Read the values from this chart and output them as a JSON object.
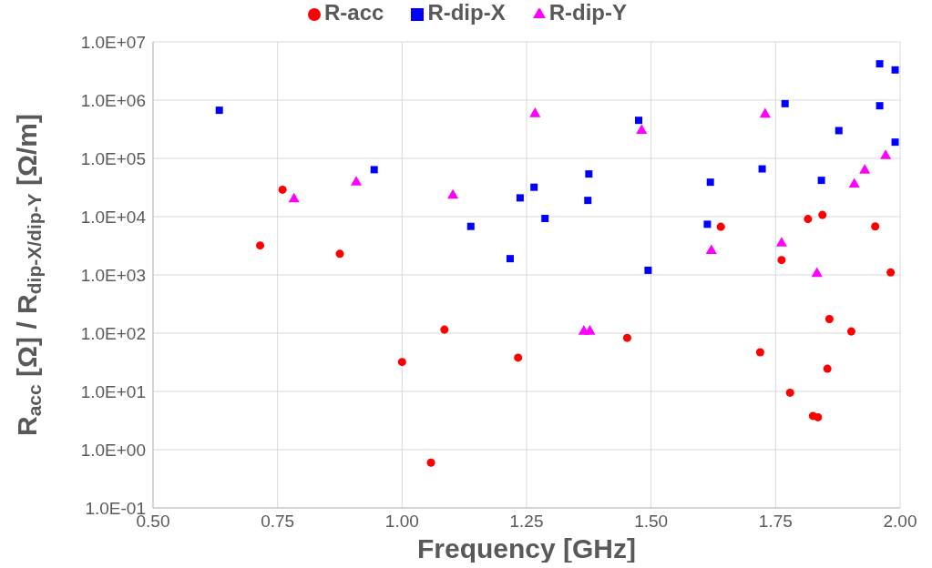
{
  "chart_data": {
    "type": "scatter",
    "xlabel": "Frequency [GHz]",
    "ylabel": "R$_{acc}$ [Ω] / R$_{dip-X/dip-Y}$ [Ω/m]",
    "xlim": [
      0.5,
      2.0
    ],
    "xticks": [
      {
        "value": 0.5,
        "label": "0.50"
      },
      {
        "value": 0.75,
        "label": "0.75"
      },
      {
        "value": 1.0,
        "label": "1.00"
      },
      {
        "value": 1.25,
        "label": "1.25"
      },
      {
        "value": 1.5,
        "label": "1.50"
      },
      {
        "value": 1.75,
        "label": "1.75"
      },
      {
        "value": 2.0,
        "label": "2.00"
      }
    ],
    "ylim": [
      0.1,
      10000000
    ],
    "yticks": [
      {
        "value": 0.1,
        "label": "1.0E-01"
      },
      {
        "value": 1,
        "label": "1.0E+00"
      },
      {
        "value": 10,
        "label": "1.0E+01"
      },
      {
        "value": 100,
        "label": "1.0E+02"
      },
      {
        "value": 1000,
        "label": "1.0E+03"
      },
      {
        "value": 10000,
        "label": "1.0E+04"
      },
      {
        "value": 100000,
        "label": "1.0E+05"
      },
      {
        "value": 1000000,
        "label": "1.0E+06"
      },
      {
        "value": 10000000,
        "label": "1.0E+07"
      }
    ],
    "log": "y",
    "grid": true,
    "legend": "top",
    "series": [
      {
        "name": "R-acc",
        "color": "#ff0000",
        "marker": "circle",
        "x": [
          0.76,
          0.715,
          0.875,
          1.085,
          1.0,
          1.233,
          1.058,
          1.452,
          1.64,
          1.762,
          1.719,
          1.779,
          1.815,
          1.844,
          1.858,
          1.854,
          1.825,
          1.835,
          1.902,
          1.95,
          1.981
        ],
        "values": [
          29000,
          3200,
          2300,
          115,
          32,
          38,
          0.6,
          83,
          6700,
          1800,
          47,
          9.5,
          9100,
          10700,
          175,
          24.5,
          3.8,
          3.6,
          107,
          6800,
          1100
        ]
      },
      {
        "name": "R-dip-X",
        "color": "#0000ff",
        "marker": "square",
        "x": [
          0.633,
          0.944,
          1.237,
          1.138,
          1.217,
          1.265,
          1.287,
          1.375,
          1.373,
          1.475,
          1.494,
          1.619,
          1.613,
          1.723,
          1.769,
          1.877,
          1.842,
          1.959,
          1.99,
          1.959,
          1.99
        ],
        "values": [
          670000,
          64000,
          21000,
          6800,
          1900,
          32000,
          9300,
          54000,
          19000,
          450000,
          1200,
          39000,
          7400,
          66000,
          870000,
          300000,
          42000,
          4200000,
          3300000,
          800000,
          190000
        ]
      },
      {
        "name": "R-dip-Y",
        "color": "#ff00ff",
        "marker": "triangle",
        "x": [
          0.783,
          0.908,
          1.102,
          1.267,
          1.481,
          1.365,
          1.377,
          1.621,
          1.729,
          1.762,
          1.833,
          1.908,
          1.929,
          1.971
        ],
        "values": [
          20000,
          39000,
          23000,
          580000,
          300000,
          107,
          107,
          2600,
          570000,
          3500,
          1050,
          36000,
          62000,
          110000
        ]
      }
    ]
  }
}
